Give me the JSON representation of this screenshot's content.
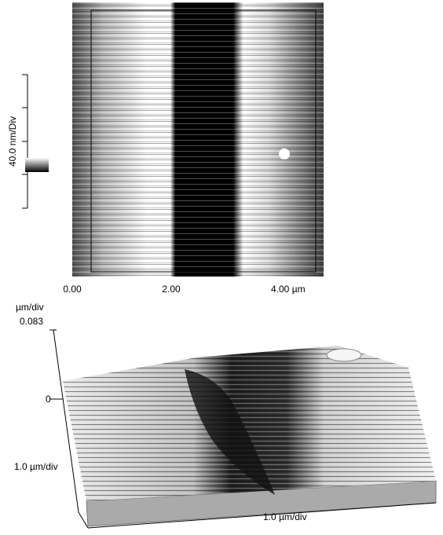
{
  "top_image": {
    "scale_label": "40.0 nm/Div",
    "x_ticks": [
      "0.00",
      "2.00",
      "4.00 µm"
    ]
  },
  "surface_plot": {
    "z_unit": "µm/div",
    "z_max": "0.083",
    "z_zero": "0",
    "y_scale": "1.0 µm/div",
    "x_scale": "1.0 µm/div"
  }
}
